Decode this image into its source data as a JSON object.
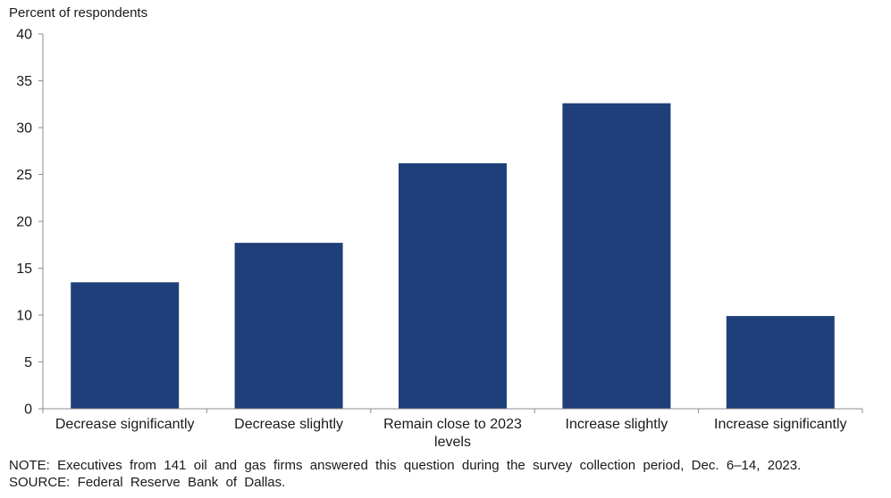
{
  "chart_data": {
    "type": "bar",
    "title": "",
    "ylabel": "Percent of respondents",
    "xlabel": "",
    "ylim": [
      0,
      40
    ],
    "yticks": [
      0,
      5,
      10,
      15,
      20,
      25,
      30,
      35,
      40
    ],
    "grid": false,
    "legend": "none",
    "bar_color": "#1f3f7a",
    "categories": [
      [
        "Decrease significantly"
      ],
      [
        "Decrease slightly"
      ],
      [
        "Remain close to 2023",
        "levels"
      ],
      [
        "Increase slightly"
      ],
      [
        "Increase significantly"
      ]
    ],
    "values": [
      13.5,
      17.7,
      26.2,
      32.6,
      9.9
    ]
  },
  "notes": {
    "note": "NOTE:  Executives  from  141  oil  and  gas  firms  answered  this  question  during  the  survey  collection  period,  Dec.  6–14,  2023.",
    "source": "SOURCE:  Federal  Reserve  Bank  of  Dallas."
  }
}
